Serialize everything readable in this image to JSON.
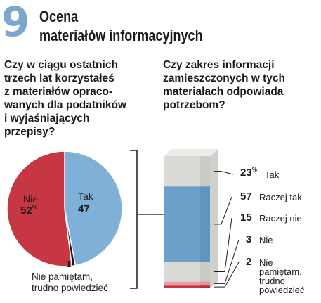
{
  "header": {
    "number": "9",
    "title_line1": "Ocena",
    "title_line2": "materiałów informacyjnych"
  },
  "questions": {
    "left": [
      "Czy w ciągu ostatnich",
      "trzech lat korzystałeś",
      "z materiałów opraco-",
      "wanych dla podatników",
      "i wyjaśniających",
      "przepisy?"
    ],
    "right": [
      "Czy zakres informacji",
      "zamieszczonych w tych",
      "materiałach odpowiada",
      "potrzebom?"
    ]
  },
  "percent_sign": "%",
  "chart_data": [
    {
      "type": "pie",
      "categories": [
        "Tak",
        "Nie",
        "Nie pamiętam, trudno powiedzieć"
      ],
      "values": [
        47,
        52,
        1
      ],
      "colors": [
        "#7fb0d8",
        "#c63743",
        "#1a1a1a"
      ]
    },
    {
      "type": "bar",
      "stacked": true,
      "categories": [
        "Tak",
        "Raczej tak",
        "Raczej nie",
        "Nie",
        "Nie pamiętam, trudno powiedzieć"
      ],
      "values": [
        23,
        57,
        15,
        3,
        2
      ],
      "colors": [
        "#d9d9d6",
        "#6d9fcb",
        "#d9d9d6",
        "#e8a0a6",
        "#c63743"
      ]
    }
  ],
  "pie_labels": {
    "tak_name": "Tak",
    "tak_value": "47",
    "nie_name": "Nie",
    "nie_value": "52",
    "np_value": "1",
    "np_name_line1": "Nie pamiętam,",
    "np_name_line2": "trudno powiedzieć"
  },
  "bar_labels": [
    {
      "value": "23",
      "name_lines": [
        "Tak"
      ],
      "percent": true
    },
    {
      "value": "57",
      "name_lines": [
        "Raczej tak"
      ],
      "percent": false
    },
    {
      "value": "15",
      "name_lines": [
        "Raczej nie"
      ],
      "percent": false
    },
    {
      "value": "3",
      "name_lines": [
        "Nie"
      ],
      "percent": false
    },
    {
      "value": "2",
      "name_lines": [
        "Nie",
        "pamiętam,",
        "trudno",
        "powiedzieć"
      ],
      "percent": false
    }
  ]
}
